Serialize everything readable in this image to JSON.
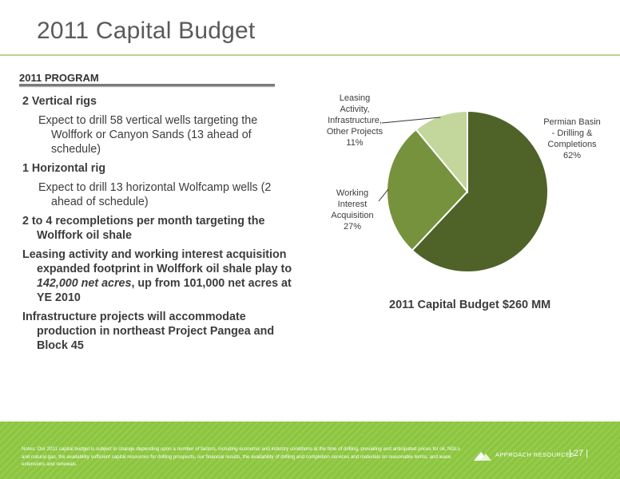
{
  "page": {
    "title": "2011 Capital Budget",
    "section_heading": "2011 PROGRAM"
  },
  "bullets": [
    {
      "level": 1,
      "parts": [
        {
          "text": "2 Vertical rigs"
        }
      ]
    },
    {
      "level": 2,
      "parts": [
        {
          "text": "Expect to drill 58 vertical wells targeting the Wolffork or Canyon Sands (13 ahead of schedule)"
        }
      ]
    },
    {
      "level": 1,
      "parts": [
        {
          "text": "1 Horizontal rig"
        }
      ]
    },
    {
      "level": 2,
      "parts": [
        {
          "text": "Expect to drill 13 horizontal Wolfcamp wells (2 ahead of schedule)"
        }
      ]
    },
    {
      "level": 1,
      "parts": [
        {
          "text": "2 to 4 recompletions per month targeting the Wolffork oil shale"
        }
      ]
    },
    {
      "level": 1,
      "parts": [
        {
          "text": "Leasing activity and working interest acquisition expanded footprint in Wolffork oil shale play to "
        },
        {
          "text": "142,000 net acres",
          "italic": true
        },
        {
          "text": ", up from 101,000 net acres at YE 2010"
        }
      ]
    },
    {
      "level": 1,
      "parts": [
        {
          "text": "Infrastructure projects will accommodate production in northeast Project Pangea and Block 45"
        }
      ]
    }
  ],
  "chart_data": {
    "type": "pie",
    "title": "2011 Capital Budget $260 MM",
    "slices": [
      {
        "label": "Permian Basin - Drilling & Completions",
        "display_lines": [
          "Permian Basin",
          "- Drilling &",
          "Completions"
        ],
        "value": 62,
        "percent_label": "62%",
        "color": "#4f6228"
      },
      {
        "label": "Working Interest Acquisition",
        "display_lines": [
          "Working",
          "Interest",
          "Acquisition"
        ],
        "value": 27,
        "percent_label": "27%",
        "color": "#76923c"
      },
      {
        "label": "Leasing Activity, Infrastructure, Other Projects",
        "display_lines": [
          "Leasing",
          "Activity,",
          "Infrastructure,",
          "Other Projects"
        ],
        "value": 11,
        "percent_label": "11%",
        "color": "#c3d69b"
      }
    ]
  },
  "footer": {
    "notes": "Notes: Our 2011 capital budget is subject to change depending upon a number of factors, including economic and industry conditions at the time of drilling, prevailing and anticipated prices for oil, NGLs and natural gas, the availability sufficient capital resources for drilling prospects, our financial results, the availability of drilling and completion services and materials on reasonable terms, and lease extensions and renewals.",
    "brand": "APPROACH RESOURCES",
    "page_number": "| 27 |",
    "color": "#8cc63f"
  }
}
